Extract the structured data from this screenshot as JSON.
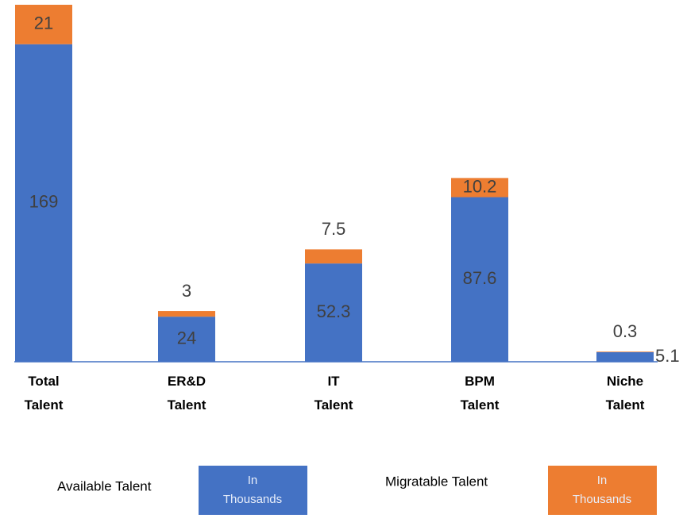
{
  "chart_data": {
    "type": "stacked_bar",
    "categories": [
      "Total Talent",
      "ER&D Talent",
      "IT Talent",
      "BPM Talent",
      "Niche Talent"
    ],
    "series": [
      {
        "name": "Available Talent",
        "color": "#4472c4",
        "unit": "In Thousands",
        "values": [
          169,
          24,
          52.3,
          87.6,
          5.1
        ]
      },
      {
        "name": "Migratable Talent",
        "color": "#ed7d31",
        "unit": "In Thousands",
        "values": [
          21,
          3,
          7.5,
          10.2,
          0.3
        ]
      }
    ],
    "ylim": [
      0,
      190
    ]
  }
}
